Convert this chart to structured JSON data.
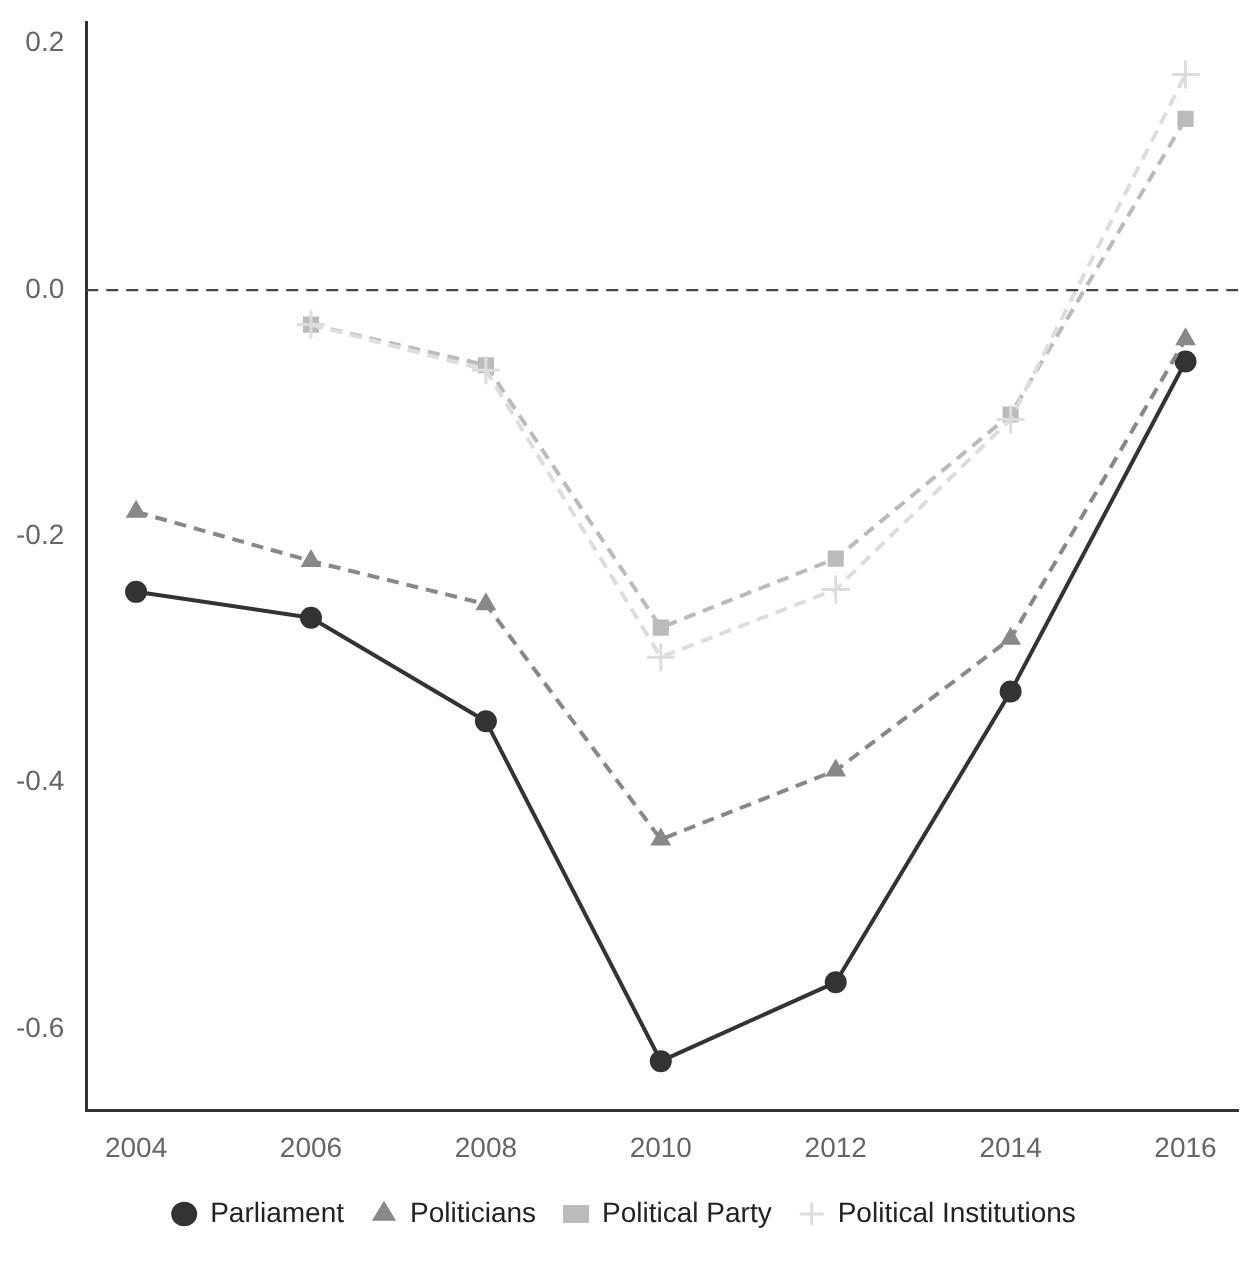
{
  "chart_data": {
    "type": "line",
    "x": [
      2004,
      2006,
      2008,
      2010,
      2012,
      2014,
      2016
    ],
    "series": [
      {
        "name": "Parliament",
        "color": "#333333",
        "marker": "circle",
        "line_style": "solid",
        "values": [
          -0.245,
          -0.266,
          -0.35,
          -0.626,
          -0.562,
          -0.326,
          -0.058
        ]
      },
      {
        "name": "Politicians",
        "color": "#888888",
        "marker": "triangle",
        "line_style": "dashed",
        "values": [
          -0.18,
          -0.22,
          -0.255,
          -0.446,
          -0.39,
          -0.283,
          -0.04
        ]
      },
      {
        "name": "Political Party",
        "color": "#bbbbbb",
        "marker": "square",
        "line_style": "dashed",
        "values": [
          null,
          -0.028,
          -0.061,
          -0.274,
          -0.218,
          -0.101,
          0.139
        ]
      },
      {
        "name": "Political Institutions",
        "color": "#dddddd",
        "marker": "cross",
        "line_style": "dashed",
        "values": [
          null,
          -0.028,
          -0.065,
          -0.298,
          -0.243,
          -0.105,
          0.175
        ]
      }
    ],
    "xlim": [
      2003.43,
      2016.6
    ],
    "xticks": [
      2004,
      2006,
      2008,
      2010,
      2012,
      2014,
      2016
    ],
    "ylim": [
      -0.666,
      0.217
    ],
    "yticks": [
      {
        "value": -0.6,
        "label": "-0.6"
      },
      {
        "value": -0.4,
        "label": "-0.4"
      },
      {
        "value": -0.2,
        "label": "-0.2"
      },
      {
        "value": 0,
        "label": "0.0"
      },
      {
        "value": 0.2,
        "label": "0.2"
      }
    ],
    "ref_lines": [
      {
        "axis": "y",
        "value": 0,
        "color": "#444444",
        "line_style": "dashed"
      }
    ],
    "grid": false,
    "legend": "bottom"
  }
}
